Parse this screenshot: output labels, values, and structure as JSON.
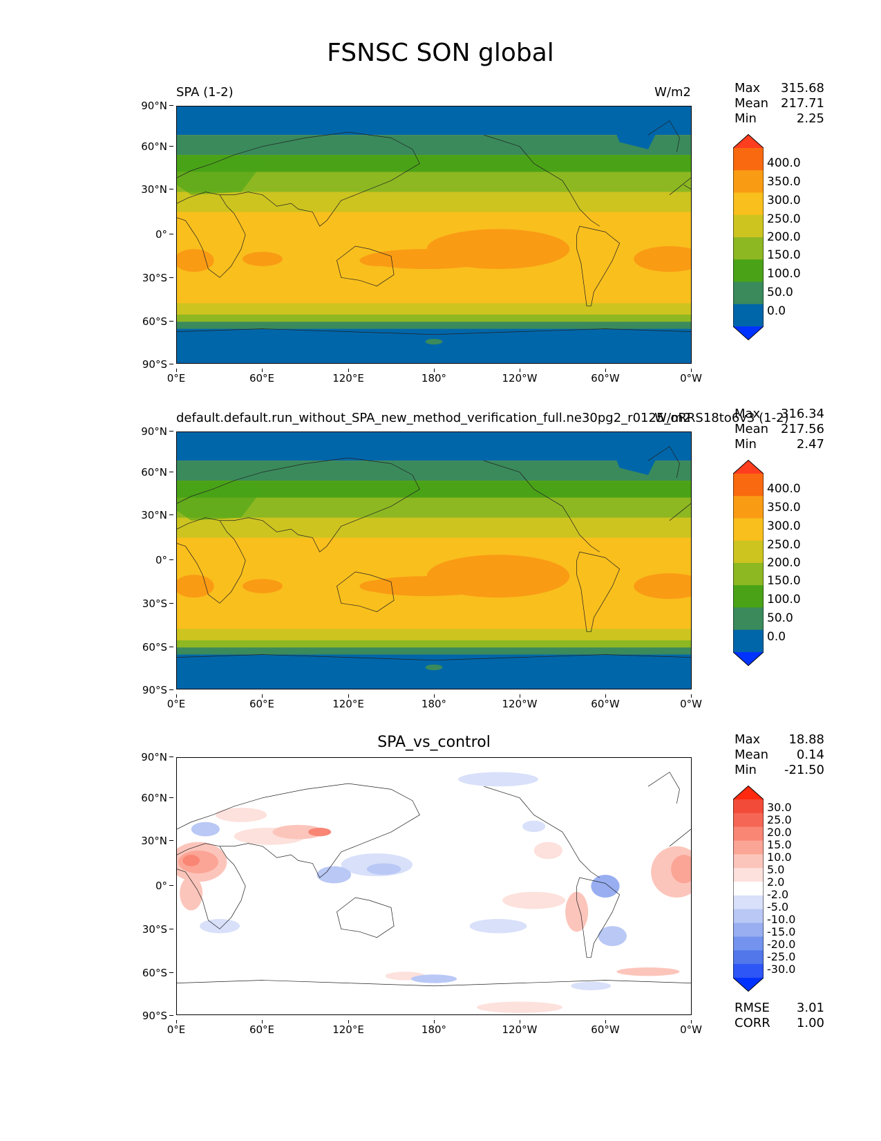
{
  "title": "FSNSC SON global",
  "panels": [
    {
      "id": "test",
      "left_title": "SPA (1-2)",
      "center_title": "",
      "right_title": "W/m2",
      "stats": [
        {
          "label": "Max",
          "value": "315.68"
        },
        {
          "label": "Mean",
          "value": "217.71"
        },
        {
          "label": "Min",
          "value": "2.25"
        }
      ],
      "colorbar_labels": [
        "400.0",
        "350.0",
        "300.0",
        "250.0",
        "200.0",
        "150.0",
        "100.0",
        "50.0",
        "0.0"
      ],
      "extra_stats": []
    },
    {
      "id": "ref",
      "left_title": "default.default.run_without_SPA_new_method_verification_full.ne30pg2_r0125_oRRS18to6v3 (1-2)",
      "center_title": "",
      "right_title": "W/m2",
      "stats": [
        {
          "label": "Max",
          "value": "316.34"
        },
        {
          "label": "Mean",
          "value": "217.56"
        },
        {
          "label": "Min",
          "value": "2.47"
        }
      ],
      "colorbar_labels": [
        "400.0",
        "350.0",
        "300.0",
        "250.0",
        "200.0",
        "150.0",
        "100.0",
        "50.0",
        "0.0"
      ],
      "extra_stats": []
    },
    {
      "id": "diff",
      "left_title": "",
      "center_title": "SPA_vs_control",
      "right_title": "",
      "stats": [
        {
          "label": "Max",
          "value": "18.88"
        },
        {
          "label": "Mean",
          "value": "0.14"
        },
        {
          "label": "Min",
          "value": "-21.50"
        }
      ],
      "colorbar_labels": [
        "30.0",
        "25.0",
        "20.0",
        "15.0",
        "10.0",
        "5.0",
        "2.0",
        "-2.0",
        "-5.0",
        "-10.0",
        "-15.0",
        "-20.0",
        "-25.0",
        "-30.0"
      ],
      "extra_stats": [
        {
          "label": "RMSE",
          "value": "3.01"
        },
        {
          "label": "CORR",
          "value": "1.00"
        }
      ]
    }
  ],
  "lat_ticks": [
    "90°N",
    "60°N",
    "30°N",
    "0°",
    "30°S",
    "60°S",
    "90°S"
  ],
  "lon_ticks": [
    "0°E",
    "60°E",
    "120°E",
    "180°",
    "120°W",
    "60°W",
    "0°W"
  ],
  "colors": {
    "abs_cmap": [
      "#0033ff",
      "#0066aa",
      "#3a8a5c",
      "#4aa317",
      "#8db822",
      "#cdc420",
      "#f9bf1d",
      "#fa9b14",
      "#f96a10",
      "#ff3d1f"
    ],
    "diff_cmap": [
      "#0032ff",
      "#2e55f5",
      "#5177eb",
      "#7393ee",
      "#98aef1",
      "#b9c8f5",
      "#d8e0fa",
      "#ffffff",
      "#fde1dc",
      "#fcc5bb",
      "#fba596",
      "#f98675",
      "#f66655",
      "#f34b39",
      "#ff2a10"
    ]
  }
}
